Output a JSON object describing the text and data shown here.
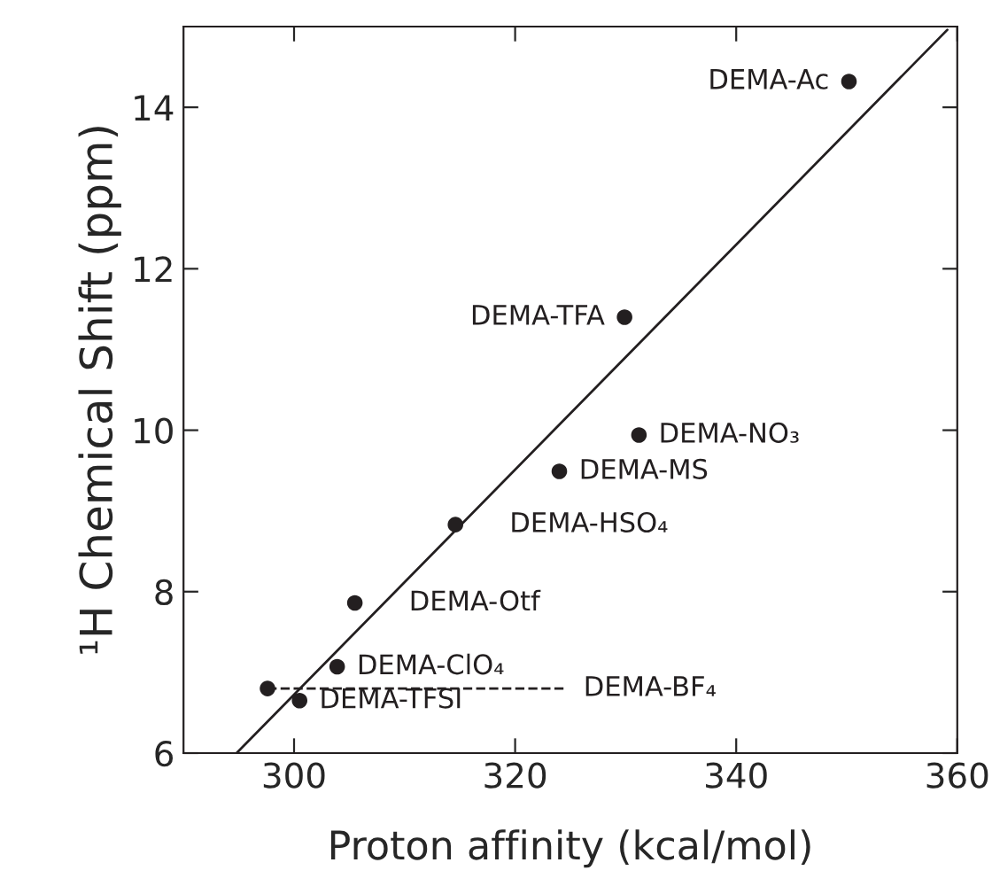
{
  "chart_data": {
    "type": "scatter",
    "xlabel": "Proton affinity (kcal/mol)",
    "ylabel": "¹H Chemical Shift (ppm)",
    "xlim": [
      290,
      360
    ],
    "ylim": [
      6,
      15
    ],
    "xticks": [
      300,
      320,
      340,
      360
    ],
    "yticks": [
      6,
      8,
      10,
      12,
      14
    ],
    "grid": false,
    "marker": "circle",
    "series": [
      {
        "color": "#231f20",
        "x": [
          350.2,
          329.9,
          331.2,
          324.0,
          314.6,
          305.5,
          303.9,
          297.6,
          300.5
        ],
        "values": [
          14.32,
          11.4,
          9.94,
          9.49,
          8.83,
          7.86,
          7.07,
          6.8,
          6.65
        ]
      },
      {
        "type": "line",
        "color": "#231f20",
        "line_style": "solid",
        "marker": "none",
        "x": [
          294.8,
          359.1
        ],
        "values": [
          6,
          14.96
        ]
      },
      {
        "type": "line",
        "color": "#231f20",
        "line_style": "dashed",
        "marker": "none",
        "x": [
          297.6,
          324.4
        ],
        "values": [
          6.8,
          6.8
        ]
      }
    ],
    "annotations": [
      {
        "text": "DEMA-Ac",
        "x": 350.2,
        "y": 14.32
      },
      {
        "text": "DEMA-TFA",
        "x": 329.9,
        "y": 11.4
      },
      {
        "text": "DEMA-NO₃",
        "x": 331.2,
        "y": 9.94
      },
      {
        "text": "DEMA-MS",
        "x": 324.0,
        "y": 9.49
      },
      {
        "text": "DEMA-HSO₄",
        "x": 314.6,
        "y": 8.83
      },
      {
        "text": "DEMA-Otf",
        "x": 305.5,
        "y": 7.86
      },
      {
        "text": "DEMA-ClO₄",
        "x": 303.9,
        "y": 7.07
      },
      {
        "text": "DEMA-BF₄",
        "x": 324.4,
        "y": 6.8
      },
      {
        "text": "DEMA-TFSI",
        "x": 300.5,
        "y": 6.65
      }
    ]
  }
}
